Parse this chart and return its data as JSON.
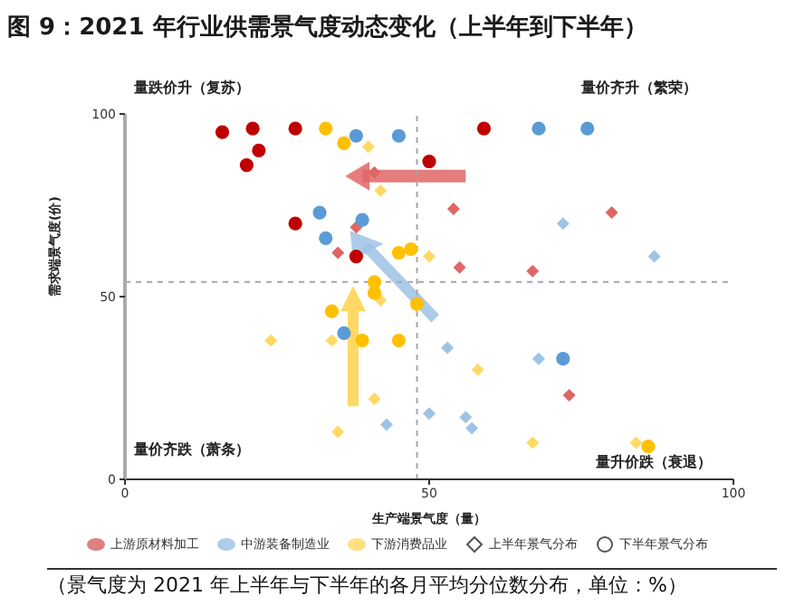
{
  "chart_data": {
    "type": "scatter",
    "title": "图 9：2021 年行业供需景气度动态变化（上半年到下半年）",
    "xlabel": "生产端景气度（量）",
    "ylabel": "需求端景气度(价)",
    "xlim": [
      0,
      100
    ],
    "ylim": [
      0,
      100
    ],
    "xticks": [
      0,
      50,
      100
    ],
    "yticks": [
      0,
      50,
      100
    ],
    "grid": false,
    "legend": "bottom",
    "ref_lines": [
      {
        "axis": "x",
        "value": 48,
        "color": "#a6a6a6",
        "line_style": "dashed"
      },
      {
        "axis": "y",
        "value": 54,
        "color": "#a6a6a6",
        "line_style": "dashed"
      }
    ],
    "annotations": [
      "量跌价升（复苏）",
      "量价齐升（繁荣）",
      "量价齐跌（萧条）",
      "量升价跌（衰退）",
      "上半年景气分布",
      "下半年景气分布",
      "（景气度为 2021 年上半年与下半年的各月平均分位数分布，单位：%）"
    ],
    "series": [
      {
        "color": "#e06666",
        "marker": "diamond",
        "x": [
          41,
          38,
          35,
          54,
          55,
          67,
          80,
          73
        ],
        "values": [
          84,
          69,
          62,
          74,
          58,
          57,
          73,
          23
        ]
      },
      {
        "name": "上游原材料加工",
        "color": "#c00000",
        "marker": "circle",
        "x": [
          16,
          21,
          22,
          20,
          28,
          28,
          38,
          50,
          59
        ],
        "values": [
          95,
          96,
          90,
          86,
          96,
          70,
          61,
          87,
          96
        ]
      },
      {
        "color": "#9dc3e6",
        "marker": "diamond",
        "x": [
          72,
          87,
          50,
          43,
          53,
          68,
          56,
          57
        ],
        "values": [
          70,
          61,
          18,
          15,
          36,
          33,
          17,
          14
        ]
      },
      {
        "name": "中游装备制造业",
        "color": "#5b9bd5",
        "marker": "circle",
        "x": [
          38,
          45,
          32,
          39,
          33,
          68,
          76,
          36,
          72
        ],
        "values": [
          94,
          94,
          73,
          71,
          66,
          96,
          96,
          40,
          33
        ]
      },
      {
        "color": "#ffd966",
        "marker": "diamond",
        "x": [
          40,
          42,
          50,
          42,
          24,
          34,
          41,
          35,
          58,
          67,
          84
        ],
        "values": [
          91,
          79,
          61,
          49,
          38,
          38,
          22,
          13,
          30,
          10,
          10
        ]
      },
      {
        "name": "下游消费品业",
        "color": "#ffc000",
        "marker": "circle",
        "x": [
          33,
          36,
          45,
          47,
          41,
          41,
          34,
          39,
          45,
          48,
          86
        ],
        "values": [
          96,
          92,
          62,
          63,
          54,
          51,
          46,
          38,
          38,
          48,
          9
        ]
      }
    ]
  }
}
